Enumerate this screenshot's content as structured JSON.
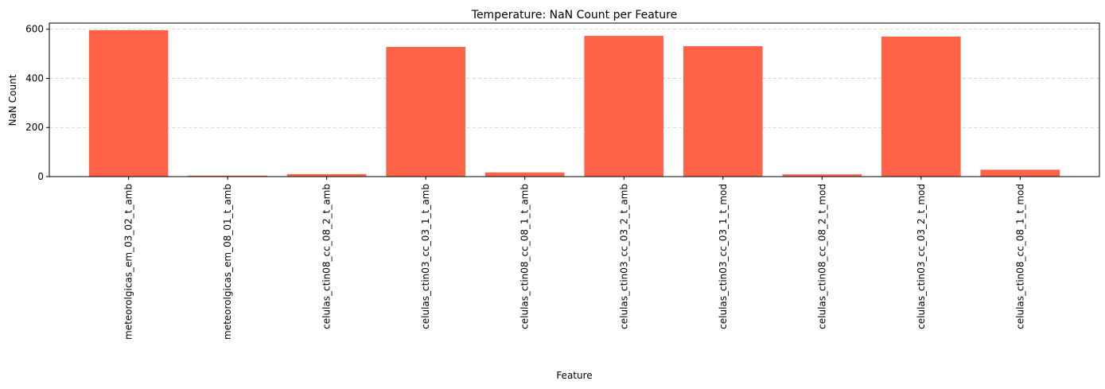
{
  "chart_data": {
    "type": "bar",
    "title": "Temperature: NaN Count per Feature",
    "xlabel": "Feature",
    "ylabel": "NaN Count",
    "categories": [
      "meteorolgicas_em_03_02_t_amb",
      "meteorolgicas_em_08_01_t_amb",
      "celulas_ctin08_cc_08_2_t_amb",
      "celulas_ctin03_cc_03_1_t_amb",
      "celulas_ctin08_cc_08_1_t_amb",
      "celulas_ctin03_cc_03_2_t_amb",
      "celulas_ctin03_cc_03_1_t_mod",
      "celulas_ctin08_cc_08_2_t_mod",
      "celulas_ctin03_cc_03_2_t_mod",
      "celulas_ctin08_cc_08_1_t_mod"
    ],
    "values": [
      596,
      4,
      10,
      528,
      17,
      573,
      531,
      9,
      570,
      28
    ],
    "ylim": [
      0,
      625
    ],
    "yticks": [
      0,
      200,
      400,
      600
    ],
    "grid": "y-dashed",
    "bar_color": "#ff6347"
  }
}
